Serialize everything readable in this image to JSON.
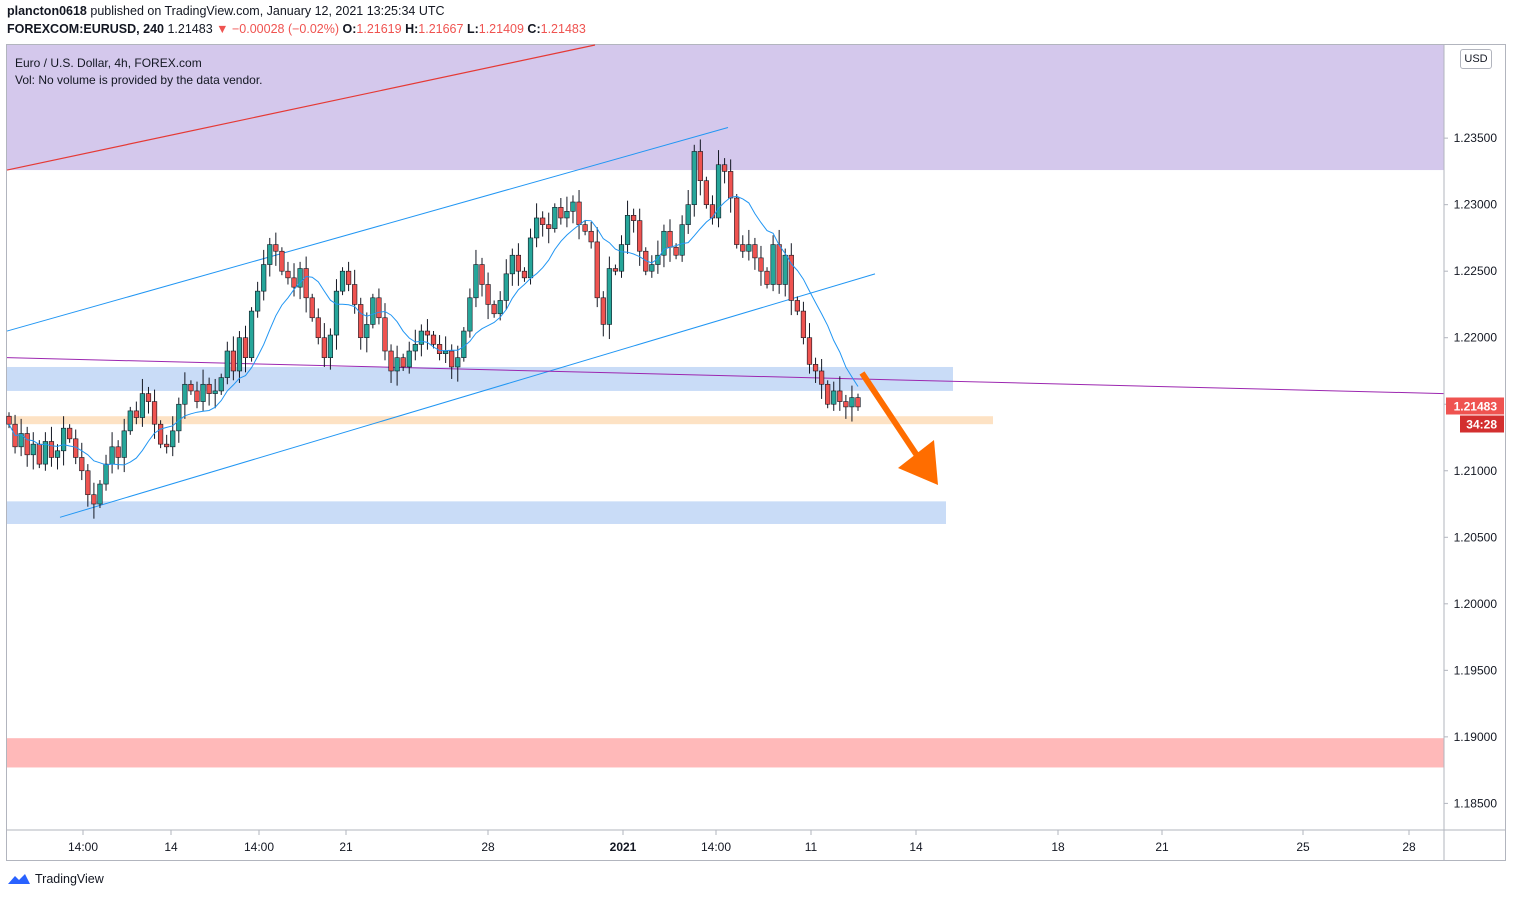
{
  "header": {
    "author": "plancton0618",
    "published_text": "published on TradingView.com, January 12, 2021 13:25:34 UTC",
    "symbol": "FOREXCOM:EURUSD, 240",
    "last": "1.21483",
    "change": "▼ −0.00028 (−0.02%)",
    "o_label": "O:",
    "o": "1.21619",
    "h_label": "H:",
    "h": "1.21667",
    "l_label": "L:",
    "l": "1.21409",
    "c_label": "C:",
    "c": "1.21483"
  },
  "legend": {
    "line1": "Euro / U.S. Dollar, 4h, FOREX.com",
    "line2": "Vol: No volume is provided by the data vendor."
  },
  "price_axis": {
    "currency": "USD",
    "current_price": "1.21483",
    "countdown": "34:28"
  },
  "footer": {
    "brand": "TradingView"
  },
  "colors": {
    "up": "#26a69a",
    "down": "#ef5350",
    "wick": "#131722",
    "resistance_zone": "#d4c8ec",
    "support_zone": "#c9dcf7",
    "orange_zone": "#fde2c4",
    "pink_zone": "#ffb9b9",
    "channel": "#2196f3",
    "trend_red": "#e53935",
    "trend_purple": "#9c27b0",
    "arrow": "#ff6d00",
    "ma": "#2196f3"
  },
  "chart_data": {
    "type": "candlestick",
    "symbol": "FOREXCOM:EURUSD",
    "timeframe": "4h",
    "ylim": [
      1.183,
      1.242
    ],
    "y_ticks": [
      "1.18500",
      "1.19000",
      "1.19500",
      "1.20000",
      "1.20500",
      "1.21000",
      "1.21500",
      "1.22000",
      "1.22500",
      "1.23000",
      "1.23500"
    ],
    "x_ticks": [
      "14:00",
      "14",
      "14:00",
      "21",
      "28",
      "2021",
      "14:00",
      "11",
      "14",
      "18",
      "21",
      "25",
      "28"
    ],
    "last_price": 1.21483,
    "ohlc_close_path": [
      1.2135,
      1.2118,
      1.2128,
      1.2112,
      1.212,
      1.2105,
      1.2122,
      1.211,
      1.2115,
      1.2132,
      1.2124,
      1.211,
      1.21,
      1.2082,
      1.2075,
      1.209,
      1.2105,
      1.2118,
      1.211,
      1.213,
      1.2145,
      1.214,
      1.2158,
      1.2152,
      1.2135,
      1.212,
      1.2118,
      1.213,
      1.215,
      1.2165,
      1.216,
      1.2152,
      1.2165,
      1.2158,
      1.216,
      1.217,
      1.219,
      1.2175,
      1.22,
      1.2185,
      1.222,
      1.2235,
      1.2255,
      1.227,
      1.2265,
      1.225,
      1.2245,
      1.2238,
      1.2252,
      1.223,
      1.2215,
      1.22,
      1.2185,
      1.2202,
      1.2235,
      1.225,
      1.224,
      1.2225,
      1.22,
      1.221,
      1.223,
      1.2215,
      1.219,
      1.2175,
      1.2185,
      1.2178,
      1.219,
      1.2195,
      1.2205,
      1.2202,
      1.2195,
      1.2188,
      1.219,
      1.2178,
      1.2185,
      1.2205,
      1.223,
      1.2255,
      1.224,
      1.2225,
      1.2218,
      1.2228,
      1.2248,
      1.2262,
      1.225,
      1.2245,
      1.2275,
      1.229,
      1.2285,
      1.2282,
      1.2298,
      1.229,
      1.2295,
      1.2302,
      1.2285,
      1.228,
      1.2272,
      1.223,
      1.221,
      1.2252,
      1.225,
      1.227,
      1.2292,
      1.2288,
      1.2265,
      1.225,
      1.2255,
      1.2262,
      1.228,
      1.2268,
      1.2262,
      1.2285,
      1.23,
      1.234,
      1.2318,
      1.23,
      1.229,
      1.233,
      1.2325,
      1.2305,
      1.227,
      1.2265,
      1.227,
      1.226,
      1.225,
      1.224,
      1.227,
      1.224,
      1.2262,
      1.2228,
      1.222,
      1.22,
      1.218,
      1.2175,
      1.2165,
      1.215,
      1.216,
      1.2152,
      1.2148,
      1.2155,
      1.2148
    ]
  },
  "annotations": {
    "resistance_zone": [
      1.2326,
      1.242
    ],
    "support_zone_upper": [
      1.216,
      1.2178
    ],
    "orange_zone": [
      1.2135,
      1.2141
    ],
    "support_zone_lower": [
      1.206,
      1.2077
    ],
    "pink_zone": [
      1.1877,
      1.1899
    ]
  }
}
